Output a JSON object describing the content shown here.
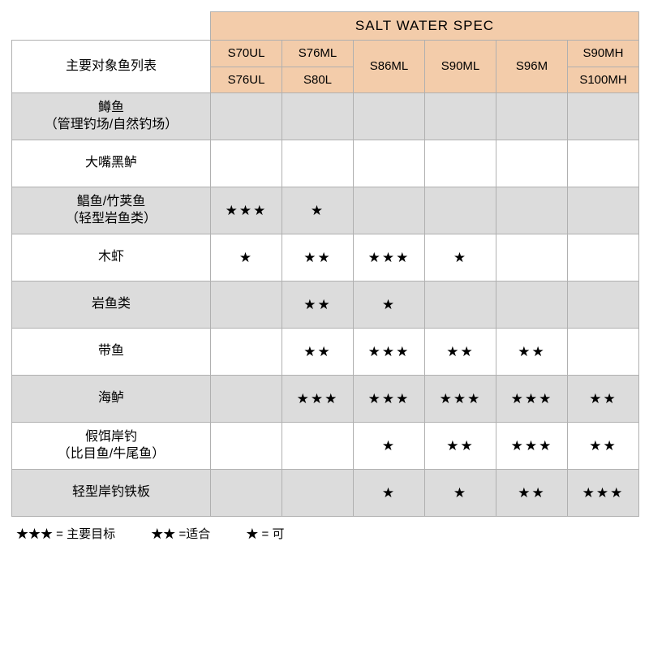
{
  "colors": {
    "header_bg": "#f3ccaa",
    "subheader_bg": "#f3ccaa",
    "alt_row_bg": "#dcdcdc",
    "border": "#b0b0b0",
    "text": "#000000",
    "page_bg": "#ffffff"
  },
  "sectionTitle": "SALT WATER SPEC",
  "rowHeaderTitle": "主要对象鱼列表",
  "columns": {
    "top": [
      "S70UL",
      "S76ML",
      "S86ML",
      "S90ML",
      "S96M",
      "S90MH"
    ],
    "bottom": [
      "S76UL",
      "S80L",
      "",
      "",
      "",
      "S100MH"
    ]
  },
  "rows": [
    {
      "label": "鳟鱼\n（管理钓场/自然钓场）",
      "ratings": [
        "",
        "",
        "",
        "",
        "",
        ""
      ]
    },
    {
      "label": "大嘴黑鲈",
      "ratings": [
        "",
        "",
        "",
        "",
        "",
        ""
      ]
    },
    {
      "label": "鲳鱼/竹荚鱼\n（轻型岩鱼类）",
      "ratings": [
        "★★★",
        "★",
        "",
        "",
        "",
        ""
      ]
    },
    {
      "label": "木虾",
      "ratings": [
        "★",
        "★★",
        "★★★",
        "★",
        "",
        ""
      ]
    },
    {
      "label": "岩鱼类",
      "ratings": [
        "",
        "★★",
        "★",
        "",
        "",
        ""
      ]
    },
    {
      "label": "带鱼",
      "ratings": [
        "",
        "★★",
        "★★★",
        "★★",
        "★★",
        ""
      ]
    },
    {
      "label": "海鲈",
      "ratings": [
        "",
        "★★★",
        "★★★",
        "★★★",
        "★★★",
        "★★"
      ]
    },
    {
      "label": "假饵岸钓\n（比目鱼/牛尾鱼）",
      "ratings": [
        "",
        "",
        "★",
        "★★",
        "★★★",
        "★★"
      ]
    },
    {
      "label": "轻型岸钓铁板",
      "ratings": [
        "",
        "",
        "★",
        "★",
        "★★",
        "★★★"
      ]
    }
  ],
  "legend": {
    "main": "★★★ = 主要目标",
    "suit": "★★ =适合",
    "ok": "★ = 可"
  },
  "fontSizes": {
    "section": 17,
    "head": 15,
    "rowLabel": 16,
    "stars": 17,
    "legend": 15
  },
  "starChar": "★"
}
